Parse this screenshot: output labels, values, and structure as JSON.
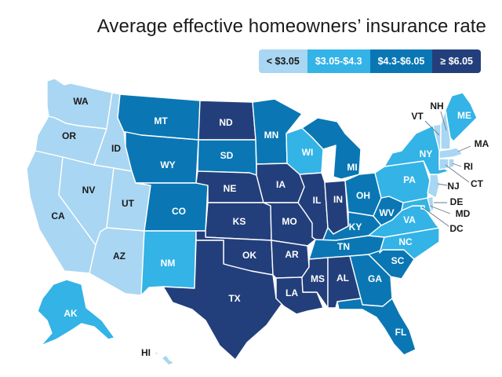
{
  "title": "Average effective homeowners’ insurance rate",
  "colors": {
    "tier1": "#a9d6f2",
    "tier2": "#33b3e6",
    "tier3": "#0a77b4",
    "tier4": "#233f7b",
    "light_text": "#1a1a1a",
    "dark_text": "#ffffff"
  },
  "legend": [
    {
      "label": "< $3.05",
      "tier": 1
    },
    {
      "label": "$3.05-$4.3",
      "tier": 2
    },
    {
      "label": "$4.3-$6.05",
      "tier": 3
    },
    {
      "label": "≥ $6.05",
      "tier": 4
    }
  ],
  "states": {
    "WA": {
      "label": "WA",
      "tier": 1
    },
    "OR": {
      "label": "OR",
      "tier": 1
    },
    "CA": {
      "label": "CA",
      "tier": 1
    },
    "ID": {
      "label": "ID",
      "tier": 1
    },
    "NV": {
      "label": "NV",
      "tier": 1
    },
    "UT": {
      "label": "UT",
      "tier": 1
    },
    "AZ": {
      "label": "AZ",
      "tier": 1
    },
    "HI": {
      "label": "HI",
      "tier": 1
    },
    "MT": {
      "label": "MT",
      "tier": 3
    },
    "WY": {
      "label": "WY",
      "tier": 3
    },
    "CO": {
      "label": "CO",
      "tier": 3
    },
    "NM": {
      "label": "NM",
      "tier": 2
    },
    "ND": {
      "label": "ND",
      "tier": 4
    },
    "SD": {
      "label": "SD",
      "tier": 3
    },
    "NE": {
      "label": "NE",
      "tier": 4
    },
    "KS": {
      "label": "KS",
      "tier": 4
    },
    "OK": {
      "label": "OK",
      "tier": 4
    },
    "TX": {
      "label": "TX",
      "tier": 4
    },
    "MN": {
      "label": "MN",
      "tier": 3
    },
    "IA": {
      "label": "IA",
      "tier": 4
    },
    "MO": {
      "label": "MO",
      "tier": 4
    },
    "AR": {
      "label": "AR",
      "tier": 4
    },
    "LA": {
      "label": "LA",
      "tier": 4
    },
    "WI": {
      "label": "WI",
      "tier": 2
    },
    "IL": {
      "label": "IL",
      "tier": 4
    },
    "MI": {
      "label": "MI",
      "tier": 3
    },
    "IN": {
      "label": "IN",
      "tier": 4
    },
    "OH": {
      "label": "OH",
      "tier": 3
    },
    "KY": {
      "label": "KY",
      "tier": 3
    },
    "TN": {
      "label": "TN",
      "tier": 3
    },
    "MS": {
      "label": "MS",
      "tier": 4
    },
    "AL": {
      "label": "AL",
      "tier": 4
    },
    "GA": {
      "label": "GA",
      "tier": 3
    },
    "FL": {
      "label": "FL",
      "tier": 3
    },
    "SC": {
      "label": "SC",
      "tier": 3
    },
    "NC": {
      "label": "NC",
      "tier": 2
    },
    "VA": {
      "label": "VA",
      "tier": 2
    },
    "WV": {
      "label": "WV",
      "tier": 3
    },
    "PA": {
      "label": "PA",
      "tier": 2
    },
    "NY": {
      "label": "NY",
      "tier": 2
    },
    "ME": {
      "label": "ME",
      "tier": 2
    },
    "NH": {
      "label": "NH",
      "tier": 1
    },
    "VT": {
      "label": "VT",
      "tier": 1
    },
    "MA": {
      "label": "MA",
      "tier": 1
    },
    "RI": {
      "label": "RI",
      "tier": 1
    },
    "CT": {
      "label": "CT",
      "tier": 1
    },
    "NJ": {
      "label": "NJ",
      "tier": 1
    },
    "DE": {
      "label": "DE",
      "tier": 1
    },
    "MD": {
      "label": "MD",
      "tier": 2
    },
    "DC": {
      "label": "DC",
      "tier": 2
    },
    "AK": {
      "label": "AK",
      "tier": 2
    }
  }
}
